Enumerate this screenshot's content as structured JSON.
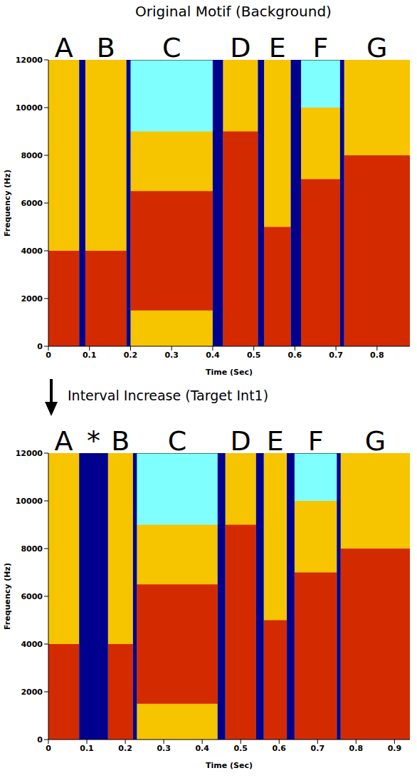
{
  "chart_data": [
    {
      "type": "spectrogram",
      "title": "Original Motif (Background)",
      "xlabel": "Time (Sec)",
      "ylabel": "Frequency (Hz)",
      "xlim": [
        0,
        0.88
      ],
      "xticks": [
        0,
        0.1,
        0.2,
        0.3,
        0.4,
        0.5,
        0.6,
        0.7,
        0.8
      ],
      "ylim": [
        0,
        12000
      ],
      "yticks": [
        0,
        2000,
        4000,
        6000,
        8000,
        10000,
        12000
      ],
      "syllables": [
        {
          "label": "A",
          "start": 0,
          "end": 0.075,
          "extent_hz": [
            0,
            12000
          ],
          "band_hz": [
            0,
            4000
          ]
        },
        {
          "label": "B",
          "start": 0.09,
          "end": 0.19,
          "extent_hz": [
            0,
            12000
          ],
          "band_hz": [
            0,
            4000
          ]
        },
        {
          "label": "C",
          "start": 0.2,
          "end": 0.4,
          "extent_hz": [
            0,
            9000
          ],
          "band_hz": [
            1500,
            6500
          ]
        },
        {
          "label": "D",
          "start": 0.425,
          "end": 0.51,
          "extent_hz": [
            0,
            12000
          ],
          "band_hz": [
            0,
            9000
          ]
        },
        {
          "label": "E",
          "start": 0.525,
          "end": 0.59,
          "extent_hz": [
            0,
            12000
          ],
          "band_hz": [
            0,
            5000
          ]
        },
        {
          "label": "F",
          "start": 0.615,
          "end": 0.71,
          "extent_hz": [
            0,
            10000
          ],
          "band_hz": [
            0,
            7000
          ]
        },
        {
          "label": "G",
          "start": 0.72,
          "end": 0.88,
          "extent_hz": [
            0,
            12000
          ],
          "band_hz": [
            0,
            8000
          ]
        }
      ],
      "gaps": [
        {
          "start": 0.075,
          "end": 0.09
        },
        {
          "start": 0.19,
          "end": 0.2
        },
        {
          "start": 0.4,
          "end": 0.425
        },
        {
          "start": 0.51,
          "end": 0.525
        },
        {
          "start": 0.59,
          "end": 0.615
        },
        {
          "start": 0.71,
          "end": 0.72
        }
      ]
    },
    {
      "type": "spectrogram",
      "title": "Interval Increase (Target Int1)",
      "xlabel": "Time (Sec)",
      "ylabel": "Frequency (Hz)",
      "xlim": [
        0,
        0.94
      ],
      "xticks": [
        0,
        0.1,
        0.2,
        0.3,
        0.4,
        0.5,
        0.6,
        0.7,
        0.8,
        0.9
      ],
      "ylim": [
        0,
        12000
      ],
      "yticks": [
        0,
        2000,
        4000,
        6000,
        8000,
        10000,
        12000
      ],
      "syllables": [
        {
          "label": "A",
          "start": 0,
          "end": 0.08,
          "extent_hz": [
            0,
            12000
          ],
          "band_hz": [
            0,
            4000
          ]
        },
        {
          "label": "B",
          "start": 0.155,
          "end": 0.22,
          "extent_hz": [
            0,
            12000
          ],
          "band_hz": [
            0,
            4000
          ]
        },
        {
          "label": "C",
          "start": 0.23,
          "end": 0.44,
          "extent_hz": [
            0,
            9000
          ],
          "band_hz": [
            1500,
            6500
          ]
        },
        {
          "label": "D",
          "start": 0.46,
          "end": 0.54,
          "extent_hz": [
            0,
            12000
          ],
          "band_hz": [
            0,
            9000
          ]
        },
        {
          "label": "E",
          "start": 0.56,
          "end": 0.62,
          "extent_hz": [
            0,
            12000
          ],
          "band_hz": [
            0,
            5000
          ]
        },
        {
          "label": "F",
          "start": 0.64,
          "end": 0.75,
          "extent_hz": [
            0,
            10000
          ],
          "band_hz": [
            0,
            7000
          ]
        },
        {
          "label": "G",
          "start": 0.76,
          "end": 0.94,
          "extent_hz": [
            0,
            12000
          ],
          "band_hz": [
            0,
            8000
          ]
        }
      ],
      "gaps": [
        {
          "label": "*",
          "start": 0.08,
          "end": 0.155
        },
        {
          "start": 0.22,
          "end": 0.23
        },
        {
          "start": 0.44,
          "end": 0.46
        },
        {
          "start": 0.54,
          "end": 0.56
        },
        {
          "start": 0.62,
          "end": 0.64
        },
        {
          "start": 0.75,
          "end": 0.76
        }
      ]
    }
  ]
}
